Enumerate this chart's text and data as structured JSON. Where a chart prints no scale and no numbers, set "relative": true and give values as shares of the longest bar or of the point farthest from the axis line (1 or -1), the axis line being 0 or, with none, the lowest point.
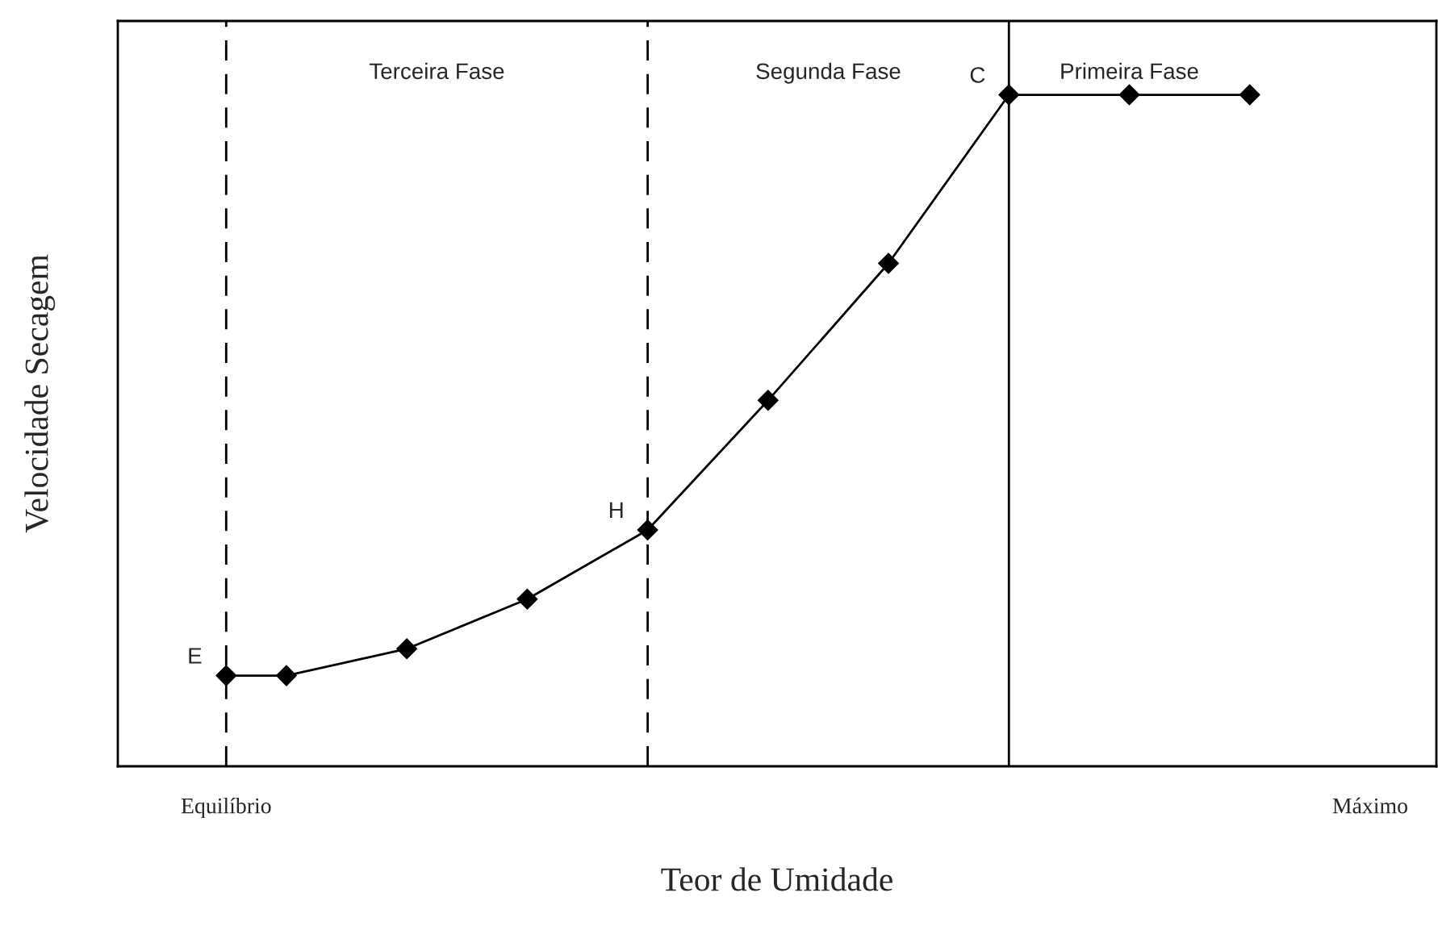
{
  "chart_data": {
    "type": "line",
    "xlabel": "Teor de Umidade",
    "ylabel": "Velocidade Secagem",
    "relative": true,
    "categories": [
      "Equilíbrio",
      null,
      null,
      null,
      null,
      null,
      null,
      null,
      null,
      null,
      null,
      null,
      null,
      null,
      null,
      null,
      null,
      null,
      null,
      "Máximo"
    ],
    "series": [
      {
        "color": "#000000",
        "values": [
          0.135,
          0.135,
          null,
          0.175,
          null,
          0.249,
          null,
          0.352,
          null,
          0.545,
          null,
          0.749,
          null,
          1,
          null,
          1,
          null,
          1,
          null,
          null
        ]
      }
    ],
    "marker": "diamond",
    "line_style": "solid",
    "tick_labels": "x",
    "annotations": [
      "Terceira Fase",
      "Segunda Fase",
      "Primeira Fase",
      "E",
      "H",
      "C"
    ]
  }
}
